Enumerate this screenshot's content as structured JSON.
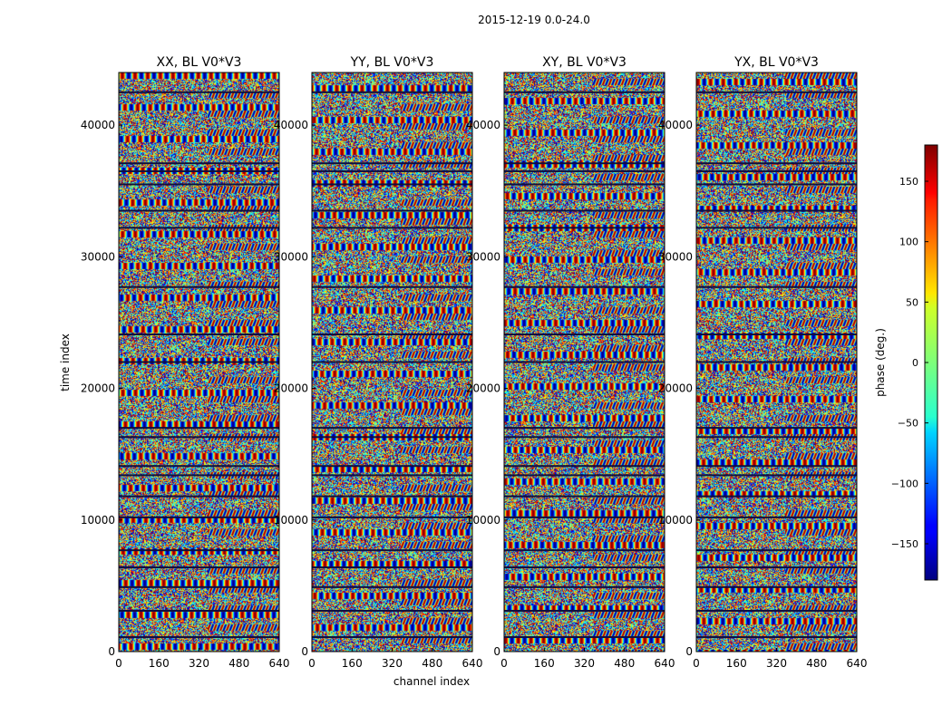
{
  "chart_data": {
    "type": "heatmap",
    "suptitle": "2015-12-19 0.0-24.0",
    "xlabel": "channel index",
    "ylabel": "time index",
    "xlim": [
      0,
      640
    ],
    "ylim": [
      0,
      44000
    ],
    "x_ticks": [
      0,
      160,
      320,
      480,
      640
    ],
    "x_tick_labels": [
      "0",
      "160",
      "320",
      "480",
      "640"
    ],
    "y_ticks": [
      0,
      10000,
      20000,
      30000,
      40000
    ],
    "y_tick_labels": [
      "0",
      "10000",
      "20000",
      "30000",
      "40000"
    ],
    "panels": [
      {
        "title": "XX, BL V0*V3"
      },
      {
        "title": "YY, BL V0*V3"
      },
      {
        "title": "XY, BL V0*V3"
      },
      {
        "title": "YX, BL V0*V3"
      }
    ],
    "colorbar": {
      "label": "phase (deg.)",
      "colormap": "jet",
      "range": [
        -180,
        180
      ],
      "ticks": [
        150,
        100,
        50,
        0,
        -50,
        -100,
        -150
      ],
      "tick_labels": [
        "150",
        "100",
        "50",
        "0",
        "−50",
        "−100",
        "−150"
      ]
    },
    "horizontal_gaps": [
      1100,
      3100,
      4900,
      6400,
      7700,
      10200,
      11800,
      13400,
      14100,
      16300,
      17000,
      22000,
      24100,
      27700,
      32200,
      33500,
      35500,
      36500,
      37100,
      42500
    ]
  }
}
